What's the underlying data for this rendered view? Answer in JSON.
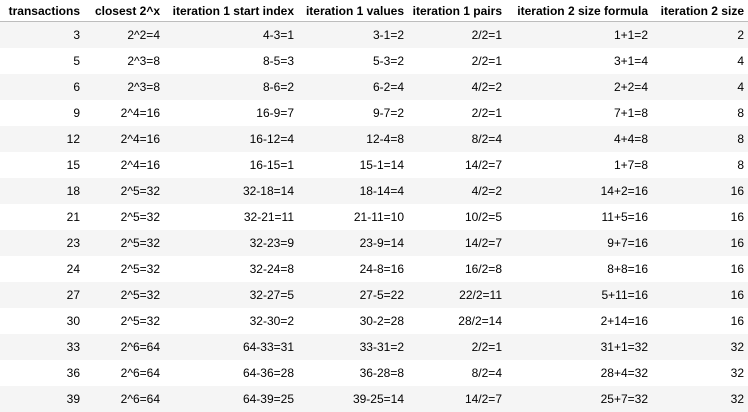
{
  "table": {
    "columns": [
      "transactions",
      "closest 2^x",
      "iteration 1 start index",
      "iteration 1 values",
      "iteration 1 pairs",
      "iteration 2 size formula",
      "iteration 2 size"
    ],
    "rows": [
      [
        "3",
        "2^2=4",
        "4-3=1",
        "3-1=2",
        "2/2=1",
        "1+1=2",
        "2"
      ],
      [
        "5",
        "2^3=8",
        "8-5=3",
        "5-3=2",
        "2/2=1",
        "3+1=4",
        "4"
      ],
      [
        "6",
        "2^3=8",
        "8-6=2",
        "6-2=4",
        "4/2=2",
        "2+2=4",
        "4"
      ],
      [
        "9",
        "2^4=16",
        "16-9=7",
        "9-7=2",
        "2/2=1",
        "7+1=8",
        "8"
      ],
      [
        "12",
        "2^4=16",
        "16-12=4",
        "12-4=8",
        "8/2=4",
        "4+4=8",
        "8"
      ],
      [
        "15",
        "2^4=16",
        "16-15=1",
        "15-1=14",
        "14/2=7",
        "1+7=8",
        "8"
      ],
      [
        "18",
        "2^5=32",
        "32-18=14",
        "18-14=4",
        "4/2=2",
        "14+2=16",
        "16"
      ],
      [
        "21",
        "2^5=32",
        "32-21=11",
        "21-11=10",
        "10/2=5",
        "11+5=16",
        "16"
      ],
      [
        "23",
        "2^5=32",
        "32-23=9",
        "23-9=14",
        "14/2=7",
        "9+7=16",
        "16"
      ],
      [
        "24",
        "2^5=32",
        "32-24=8",
        "24-8=16",
        "16/2=8",
        "8+8=16",
        "16"
      ],
      [
        "27",
        "2^5=32",
        "32-27=5",
        "27-5=22",
        "22/2=11",
        "5+11=16",
        "16"
      ],
      [
        "30",
        "2^5=32",
        "32-30=2",
        "30-2=28",
        "28/2=14",
        "2+14=16",
        "16"
      ],
      [
        "33",
        "2^6=64",
        "64-33=31",
        "33-31=2",
        "2/2=1",
        "31+1=32",
        "32"
      ],
      [
        "36",
        "2^6=64",
        "64-36=28",
        "36-28=8",
        "8/2=4",
        "28+4=32",
        "32"
      ],
      [
        "39",
        "2^6=64",
        "64-39=25",
        "39-25=14",
        "14/2=7",
        "25+7=32",
        "32"
      ]
    ]
  }
}
